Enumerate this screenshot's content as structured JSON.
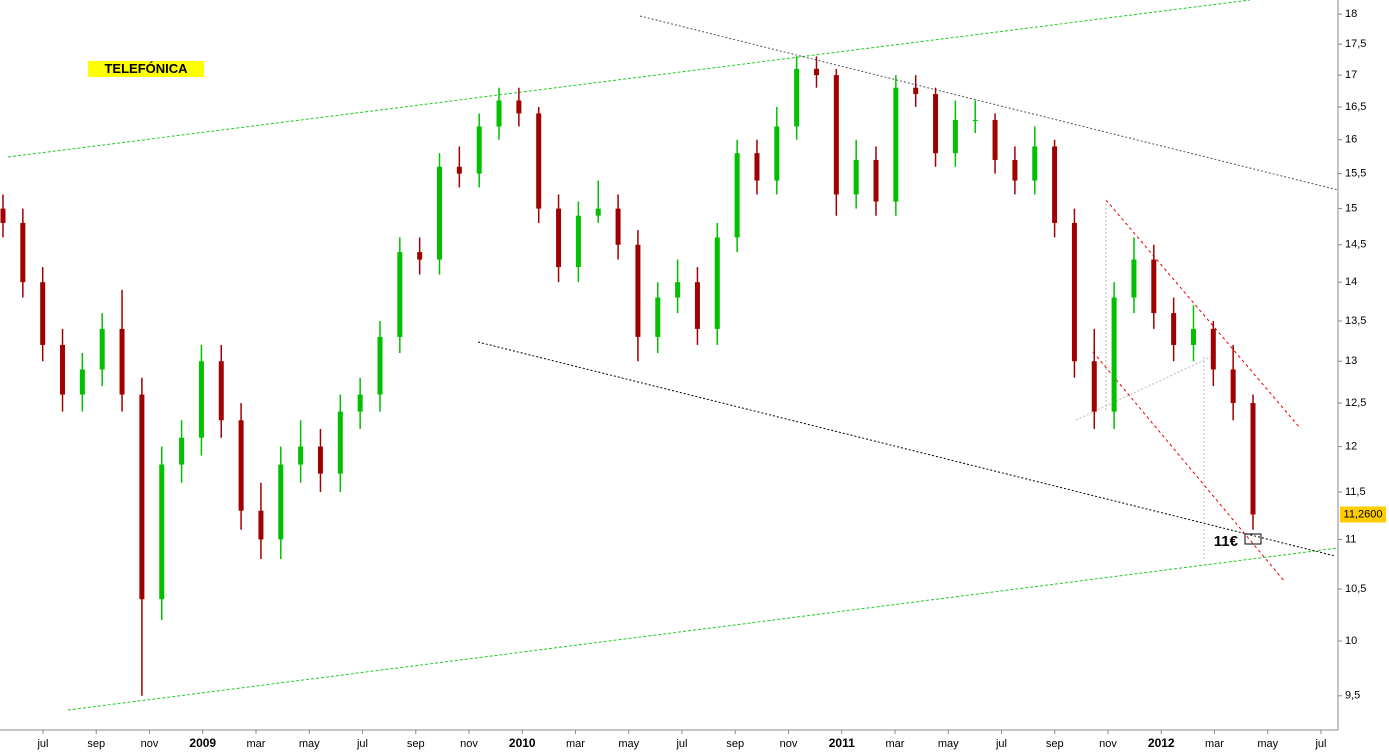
{
  "chart_data": {
    "type": "candlestick",
    "title": "TELEFÓNICA",
    "open": [
      15.0,
      14.8,
      14.0,
      13.2,
      12.6,
      12.9,
      13.4,
      12.6,
      10.4,
      11.8,
      12.1,
      13.0,
      12.3,
      11.3,
      11.0,
      11.8,
      12.0,
      11.7,
      12.4,
      12.6,
      13.3,
      14.4,
      14.3,
      15.6,
      15.5,
      16.2,
      16.6,
      16.4,
      15.0,
      14.2,
      14.9,
      15.0,
      14.5,
      13.3,
      13.8,
      14.0,
      13.4,
      14.6,
      15.8,
      15.4,
      16.2,
      17.1,
      17.0,
      15.2,
      15.7,
      15.1,
      16.8,
      16.7,
      15.8,
      16.3,
      16.3,
      15.7,
      15.4,
      15.9,
      14.8,
      13.0,
      12.4,
      13.8,
      14.3,
      13.6,
      13.2,
      13.4,
      12.9,
      12.5
    ],
    "high": [
      15.2,
      15.0,
      14.2,
      13.4,
      13.1,
      13.6,
      13.9,
      12.8,
      12.0,
      12.3,
      13.2,
      13.2,
      12.5,
      11.6,
      12.0,
      12.3,
      12.2,
      12.6,
      12.8,
      13.5,
      14.6,
      14.6,
      15.8,
      15.9,
      16.4,
      16.8,
      16.8,
      16.5,
      15.2,
      15.1,
      15.4,
      15.2,
      14.7,
      14.0,
      14.3,
      14.2,
      14.8,
      16.0,
      16.0,
      16.5,
      17.3,
      17.3,
      17.1,
      16.0,
      15.9,
      17.0,
      17.0,
      16.8,
      16.6,
      16.6,
      16.4,
      15.9,
      16.2,
      16.0,
      15.0,
      13.4,
      14.0,
      14.6,
      14.5,
      13.8,
      13.7,
      13.5,
      13.2,
      12.6
    ],
    "low": [
      14.6,
      13.8,
      13.0,
      12.4,
      12.4,
      12.7,
      12.4,
      9.5,
      10.2,
      11.6,
      11.9,
      12.1,
      11.1,
      10.8,
      10.8,
      11.6,
      11.5,
      11.5,
      12.2,
      12.4,
      13.1,
      14.1,
      14.1,
      15.3,
      15.3,
      16.0,
      16.2,
      14.8,
      14.0,
      14.0,
      14.8,
      14.3,
      13.0,
      13.1,
      13.6,
      13.2,
      13.2,
      14.4,
      15.2,
      15.2,
      16.0,
      16.8,
      14.9,
      15.0,
      14.9,
      14.9,
      16.5,
      15.6,
      15.6,
      16.1,
      15.5,
      15.2,
      15.2,
      14.6,
      12.8,
      12.2,
      12.2,
      13.6,
      13.4,
      13.0,
      13.0,
      12.7,
      12.3,
      11.1
    ],
    "close": [
      14.8,
      14.0,
      13.2,
      12.6,
      12.9,
      13.4,
      12.6,
      10.4,
      11.8,
      12.1,
      13.0,
      12.3,
      11.3,
      11.0,
      11.8,
      12.0,
      11.7,
      12.4,
      12.6,
      13.3,
      14.4,
      14.3,
      15.6,
      15.5,
      16.2,
      16.6,
      16.4,
      15.0,
      14.2,
      14.9,
      15.0,
      14.5,
      13.3,
      13.8,
      14.0,
      13.4,
      14.6,
      15.8,
      15.4,
      16.2,
      17.1,
      17.0,
      15.2,
      15.7,
      15.1,
      16.8,
      16.7,
      15.8,
      16.3,
      16.3,
      15.7,
      15.4,
      15.9,
      14.8,
      13.0,
      12.4,
      13.8,
      14.3,
      13.6,
      13.2,
      13.4,
      12.9,
      12.5,
      11.26
    ],
    "last_price_label": "11,2600",
    "up_color": "#00c000",
    "down_color": "#a00000",
    "log_scale": true,
    "ylim": [
      9.2,
      18.24
    ],
    "yticks": [
      {
        "value": 9.5,
        "label": "9,5"
      },
      10,
      {
        "value": 10.5,
        "label": "10,5"
      },
      11,
      {
        "value": 11.5,
        "label": "11,5"
      },
      12,
      {
        "value": 12.5,
        "label": "12,5"
      },
      13,
      {
        "value": 13.5,
        "label": "13,5"
      },
      14,
      {
        "value": 14.5,
        "label": "14,5"
      },
      15,
      {
        "value": 15.5,
        "label": "15,5"
      },
      16,
      {
        "value": 16.5,
        "label": "16,5"
      },
      17,
      {
        "value": 17.5,
        "label": "17,5"
      },
      18
    ],
    "xticks": [
      "jul",
      "sep",
      "nov",
      "2009",
      "mar",
      "may",
      "jul",
      "sep",
      "nov",
      "2010",
      "mar",
      "may",
      "jul",
      "sep",
      "nov",
      "2011",
      "mar",
      "may",
      "jul",
      "sep",
      "nov",
      "2012",
      "mar",
      "may",
      "jul"
    ],
    "annotations": [
      "11€"
    ]
  }
}
